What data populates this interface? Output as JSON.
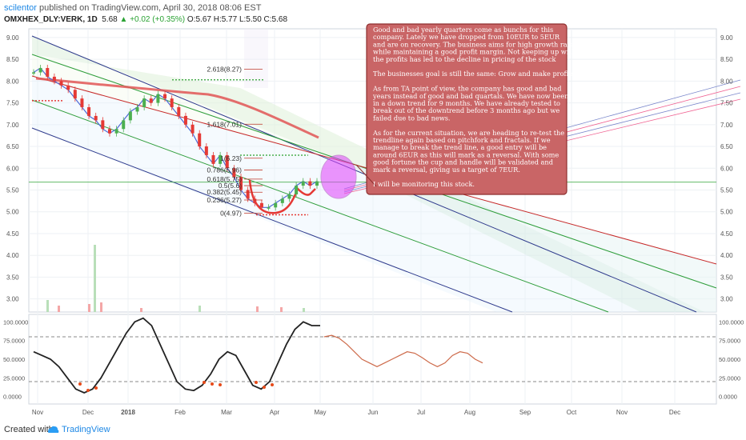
{
  "header": {
    "user": "scilentor",
    "published": "published on TradingView.com, April 30, 2018 08:06 EST",
    "symbol": "OMXHEX_DLY:VERK, 1D",
    "last": "5.68",
    "change": "▲ +0.02 (+0.35%)",
    "ohlc": "O:5.67 H:5.77 L:5.50 C:5.68"
  },
  "footer": {
    "created": "Created with",
    "brand": "TradingView"
  },
  "annotation": {
    "lines": [
      "Good and bad yearly quarters come as bunchs for this",
      "company.  Lately we have dropped from 10EUR to 5EUR",
      "and are on recovery. The business aims for high growth rate",
      "while maintaining a good profit margin. Not keeping up with",
      "the profits has led to the decline in pricing of the stock",
      "",
      "The businesses goal is still the same: Grow and make profits.",
      "",
      "As from TA point of view, the company has good and bad",
      "years instead of good and bad quartals. We have now been",
      "in a down trend for 9 months. We have already tested to",
      "break out of the downtrend before 3 months ago but we",
      "failed due to bad news.",
      "",
      "As for the current situation, we are heading to re-test the",
      "trendline again based on pitchfork and fractals. If we",
      "manage to break the trend line, a good entry will be",
      "around 6EUR as this will mark as a reversal. With some",
      "good fortune the cup and handle will be validated and",
      "mark a reversal, giving us a target of 7EUR.",
      "",
      "I will be monitoring this stock."
    ]
  },
  "chart_data": [
    {
      "type": "line",
      "title": "OMXHEX_DLY:VERK, 1D",
      "ylim": [
        2.7,
        9.2
      ],
      "y_ticks": [
        "9.00",
        "8.50",
        "8.00",
        "7.50",
        "7.00",
        "6.50",
        "6.00",
        "5.50",
        "5.00",
        "4.50",
        "4.00",
        "3.50",
        "3.00"
      ],
      "x_ticks": [
        "Nov",
        "Dec",
        "2018",
        "Feb",
        "Mar",
        "Apr",
        "May",
        "Jun",
        "Jul",
        "Aug",
        "Sep",
        "Oct",
        "Nov",
        "Dec"
      ],
      "fib_levels": [
        {
          "label": "2.618(8.27)",
          "value": 8.27
        },
        {
          "label": "1.618(7.01)",
          "value": 7.01
        },
        {
          "label": "1(6.23)",
          "value": 6.23
        },
        {
          "label": "0.786(5.96)",
          "value": 5.96
        },
        {
          "label": "0.618(5.75)",
          "value": 5.75
        },
        {
          "label": "0.5(5.6)",
          "value": 5.6
        },
        {
          "label": "0.382(5.45)",
          "value": 5.45
        },
        {
          "label": "0.236(5.27)",
          "value": 5.27
        },
        {
          "label": "0(4.97)",
          "value": 4.97
        }
      ],
      "close_series": [
        8.2,
        8.3,
        8.1,
        8.0,
        7.9,
        7.8,
        7.6,
        7.4,
        7.2,
        7.1,
        6.9,
        6.8,
        6.9,
        7.1,
        7.3,
        7.4,
        7.6,
        7.5,
        7.7,
        7.6,
        7.4,
        7.2,
        7.0,
        6.8,
        6.5,
        6.3,
        6.1,
        6.3,
        6.0,
        5.8,
        5.5,
        5.3,
        5.2,
        5.1,
        5.1,
        5.2,
        5.3,
        5.4,
        5.6,
        5.7,
        5.6,
        5.7
      ],
      "colors": {
        "up": "#4caf50",
        "down": "#e53935",
        "ma_long": "#e05555",
        "ma_short": "#4f6bd6",
        "pitchfork": "#2e3a8c",
        "median": "#c62828",
        "parallel": "#2e9d3a",
        "current": "#4caf50"
      }
    },
    {
      "type": "line",
      "title": "",
      "ylim": [
        -10,
        110
      ],
      "y_ticks": [
        "100.0000",
        "75.0000",
        "50.0000",
        "25.0000",
        "0.0000"
      ],
      "guide_levels": [
        80,
        20
      ],
      "series": [
        {
          "values": [
            60,
            55,
            50,
            40,
            25,
            10,
            5,
            10,
            25,
            45,
            65,
            85,
            100,
            105,
            95,
            70,
            45,
            20,
            10,
            8,
            15,
            30,
            50,
            60,
            55,
            35,
            15,
            10,
            20,
            45,
            70,
            90,
            100,
            95,
            95
          ]
        },
        {
          "values": [
            80,
            82,
            78,
            70,
            60,
            50,
            45,
            40,
            45,
            50,
            55,
            60,
            58,
            52,
            45,
            40,
            45,
            55,
            60,
            58,
            50,
            45
          ]
        }
      ]
    }
  ]
}
